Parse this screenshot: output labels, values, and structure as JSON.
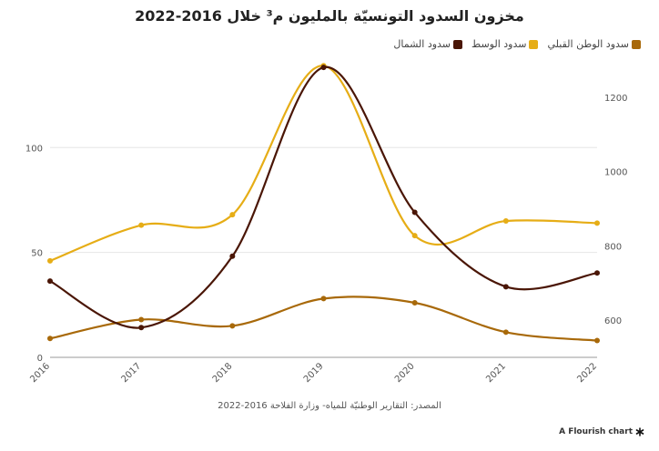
{
  "chart_data": {
    "type": "line",
    "title": "مخزون السدود التونسيّة بالمليون م³ خلال 2016-2022",
    "source": "المصدر: التقارير الوطنيّة للمياه- وزارة الفلاحة 2016-2022",
    "categories": [
      "2016",
      "2017",
      "2018",
      "2019",
      "2020",
      "2021",
      "2022"
    ],
    "left_axis": {
      "ticks": [
        "0",
        "50",
        "100"
      ],
      "ylim": [
        0,
        140
      ]
    },
    "right_axis": {
      "ticks": [
        "600",
        "800",
        "1000",
        "1200"
      ],
      "ylim": [
        500,
        1290
      ]
    },
    "series": [
      {
        "name": "سدود الشمال",
        "color": "#4a1606",
        "axis": "right",
        "values": [
          705,
          580,
          772,
          1280,
          890,
          690,
          727
        ]
      },
      {
        "name": "سدود الوسط",
        "color": "#e6ad16",
        "axis": "left",
        "values": [
          46,
          63,
          68,
          139,
          58,
          65,
          64
        ]
      },
      {
        "name": "سدود الوطن القبلي",
        "color": "#a8690a",
        "axis": "left",
        "values": [
          9,
          18,
          15,
          28,
          26,
          12,
          8
        ]
      }
    ]
  },
  "brand": {
    "label": "A Flourish chart",
    "icon": "flourish-asterisk-icon"
  }
}
